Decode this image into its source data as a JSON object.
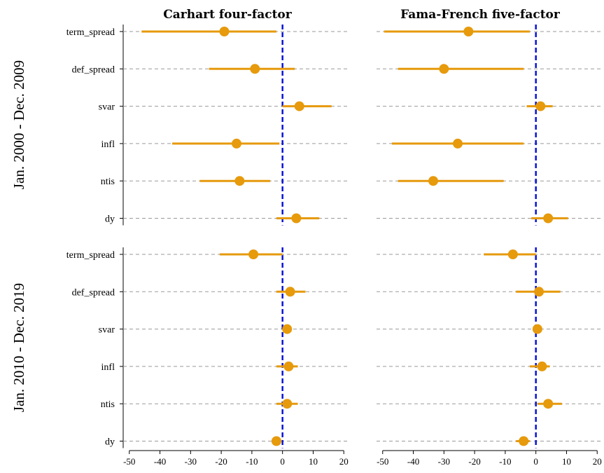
{
  "chart_data": {
    "type": "forest",
    "column_titles": [
      "Carhart four-factor",
      "Fama-French five-factor"
    ],
    "row_titles": [
      "Jan. 2000 - Dec. 2009",
      "Jan. 2010 - Dec. 2019"
    ],
    "categories": [
      "term_spread",
      "def_spread",
      "svar",
      "infl",
      "ntis",
      "dy"
    ],
    "xlim": [
      -52,
      22
    ],
    "xticks": [
      -50,
      -40,
      -30,
      -20,
      -10,
      0,
      10,
      20
    ],
    "reference_line": 0,
    "colors": {
      "point": "#E69A0C",
      "reference": "#0A14D2",
      "grid": "#9a9a9a"
    },
    "panels": [
      {
        "row": 0,
        "col": 0,
        "points": [
          {
            "category": "term_spread",
            "estimate": -19,
            "low": -46,
            "high": -2
          },
          {
            "category": "def_spread",
            "estimate": -9,
            "low": -24,
            "high": 4
          },
          {
            "category": "svar",
            "estimate": 5.5,
            "low": 0,
            "high": 16
          },
          {
            "category": "infl",
            "estimate": -15,
            "low": -36,
            "high": -1
          },
          {
            "category": "ntis",
            "estimate": -14,
            "low": -27,
            "high": -4
          },
          {
            "category": "dy",
            "estimate": 4.5,
            "low": -2,
            "high": 12
          }
        ]
      },
      {
        "row": 0,
        "col": 1,
        "points": [
          {
            "category": "term_spread",
            "estimate": -22,
            "low": -49.5,
            "high": -2
          },
          {
            "category": "def_spread",
            "estimate": -30,
            "low": -45,
            "high": -4
          },
          {
            "category": "svar",
            "estimate": 1.5,
            "low": -3,
            "high": 5.5
          },
          {
            "category": "infl",
            "estimate": -25.5,
            "low": -47,
            "high": -4
          },
          {
            "category": "ntis",
            "estimate": -33.5,
            "low": -45,
            "high": -10.5
          },
          {
            "category": "dy",
            "estimate": 4,
            "low": -1.5,
            "high": 10.5
          }
        ]
      },
      {
        "row": 1,
        "col": 0,
        "points": [
          {
            "category": "term_spread",
            "estimate": -9.5,
            "low": -20.5,
            "high": 0
          },
          {
            "category": "def_spread",
            "estimate": 2.5,
            "low": -2,
            "high": 7.5
          },
          {
            "category": "svar",
            "estimate": 1.5,
            "low": 0.5,
            "high": 2.5
          },
          {
            "category": "infl",
            "estimate": 2,
            "low": -2,
            "high": 5
          },
          {
            "category": "ntis",
            "estimate": 1.5,
            "low": -2,
            "high": 5
          },
          {
            "category": "dy",
            "estimate": -2,
            "low": -3,
            "high": -1
          }
        ]
      },
      {
        "row": 1,
        "col": 1,
        "points": [
          {
            "category": "term_spread",
            "estimate": -7.5,
            "low": -17,
            "high": 0
          },
          {
            "category": "def_spread",
            "estimate": 1,
            "low": -6.5,
            "high": 8
          },
          {
            "category": "svar",
            "estimate": 0.5,
            "low": -0.5,
            "high": 1.5
          },
          {
            "category": "infl",
            "estimate": 2,
            "low": -2,
            "high": 4.5
          },
          {
            "category": "ntis",
            "estimate": 4,
            "low": 0.5,
            "high": 8.5
          },
          {
            "category": "dy",
            "estimate": -4,
            "low": -6.5,
            "high": -2
          }
        ]
      }
    ]
  }
}
